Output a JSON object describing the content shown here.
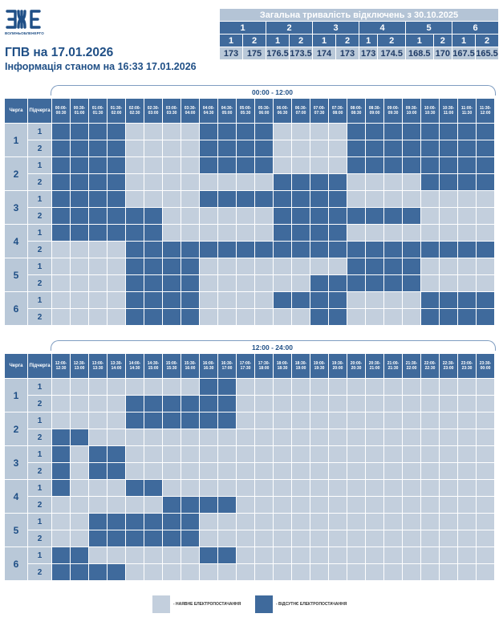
{
  "header": {
    "logo_text": "ВОЛИНЬОБЛЕНЕРГО",
    "title": "ГПВ на 17.01.2026",
    "subtitle": "Інформація станом на 16:33 17.01.2026"
  },
  "summary": {
    "title": "Загальна тривалість відключень з 30.10.2025",
    "queues": [
      "1",
      "2",
      "3",
      "4",
      "5",
      "6"
    ],
    "subqueues": [
      "1",
      "2",
      "1",
      "2",
      "1",
      "2",
      "1",
      "2",
      "1",
      "2",
      "1",
      "2"
    ],
    "values": [
      "173",
      "175",
      "176.5",
      "173.5",
      "174",
      "173",
      "173",
      "174.5",
      "168.5",
      "170",
      "167.5",
      "165.5"
    ]
  },
  "schedule": {
    "col_queue": "Черга",
    "col_subqueue": "Підчерга",
    "queue_labels": [
      "1",
      "2",
      "3",
      "4",
      "5",
      "6"
    ],
    "sub_labels": [
      "1",
      "2",
      "1",
      "2",
      "1",
      "2",
      "1",
      "2",
      "1",
      "2",
      "1",
      "2"
    ],
    "block1": {
      "range": "00:00 - 12:00",
      "slots": [
        "00:00-00:30",
        "00:30-01:00",
        "01:00-01:30",
        "01:30-02:00",
        "02:00-02:30",
        "02:30-03:00",
        "03:00-03:30",
        "03:30-04:00",
        "04:00-04:30",
        "04:30-05:00",
        "05:00-05:30",
        "05:30-06:00",
        "06:00-06:30",
        "06:30-07:00",
        "07:00-07:30",
        "07:30-08:00",
        "08:00-08:30",
        "08:30-09:00",
        "09:00-09:30",
        "09:30-10:00",
        "10:00-10:30",
        "10:30-11:00",
        "11:00-11:30",
        "11:30-12:00"
      ],
      "rows": [
        [
          1,
          1,
          1,
          1,
          0,
          0,
          0,
          0,
          1,
          1,
          1,
          1,
          0,
          0,
          0,
          0,
          1,
          1,
          1,
          1,
          1,
          1,
          1,
          1
        ],
        [
          1,
          1,
          1,
          1,
          0,
          0,
          0,
          0,
          1,
          1,
          1,
          1,
          0,
          0,
          0,
          0,
          1,
          1,
          1,
          1,
          1,
          1,
          1,
          1
        ],
        [
          1,
          1,
          1,
          1,
          0,
          0,
          0,
          0,
          1,
          1,
          1,
          1,
          0,
          0,
          0,
          0,
          1,
          1,
          1,
          1,
          1,
          1,
          1,
          1
        ],
        [
          1,
          1,
          1,
          1,
          0,
          0,
          0,
          0,
          0,
          0,
          0,
          0,
          1,
          1,
          1,
          1,
          0,
          0,
          0,
          0,
          1,
          1,
          1,
          1
        ],
        [
          1,
          1,
          1,
          1,
          0,
          0,
          0,
          0,
          1,
          1,
          1,
          1,
          1,
          1,
          1,
          1,
          0,
          0,
          0,
          0,
          0,
          0,
          0,
          0
        ],
        [
          1,
          1,
          1,
          1,
          1,
          1,
          0,
          0,
          0,
          0,
          0,
          0,
          1,
          1,
          1,
          1,
          1,
          1,
          1,
          1,
          0,
          0,
          0,
          0
        ],
        [
          1,
          1,
          1,
          1,
          1,
          1,
          0,
          0,
          0,
          0,
          0,
          0,
          1,
          1,
          1,
          1,
          0,
          0,
          0,
          0,
          0,
          0,
          0,
          0
        ],
        [
          0,
          0,
          0,
          0,
          1,
          1,
          1,
          1,
          1,
          1,
          1,
          1,
          1,
          1,
          1,
          1,
          1,
          1,
          1,
          1,
          1,
          1,
          1,
          1
        ],
        [
          0,
          0,
          0,
          0,
          1,
          1,
          1,
          1,
          0,
          0,
          0,
          0,
          0,
          0,
          0,
          0,
          1,
          1,
          1,
          1,
          0,
          0,
          0,
          0
        ],
        [
          0,
          0,
          0,
          0,
          1,
          1,
          1,
          1,
          0,
          0,
          0,
          0,
          0,
          0,
          1,
          1,
          1,
          1,
          1,
          1,
          0,
          0,
          0,
          0
        ],
        [
          0,
          0,
          0,
          0,
          1,
          1,
          1,
          1,
          0,
          0,
          0,
          0,
          1,
          1,
          1,
          1,
          0,
          0,
          0,
          0,
          1,
          1,
          1,
          1
        ],
        [
          0,
          0,
          0,
          0,
          1,
          1,
          1,
          1,
          0,
          0,
          0,
          0,
          0,
          0,
          1,
          1,
          0,
          0,
          0,
          0,
          1,
          1,
          1,
          1
        ]
      ]
    },
    "block2": {
      "range": "12:00 - 24:00",
      "slots": [
        "12:00-12:30",
        "12:30-13:00",
        "13:00-13:30",
        "13:30-14:00",
        "14:00-14:30",
        "14:30-15:00",
        "15:00-15:30",
        "15:30-16:00",
        "16:00-16:30",
        "16:30-17:00",
        "17:00-17:30",
        "17:30-18:00",
        "18:00-18:30",
        "18:30-19:00",
        "19:00-19:30",
        "19:30-20:00",
        "20:00-20:30",
        "20:30-21:00",
        "21:00-21:30",
        "21:30-22:00",
        "22:00-22:30",
        "22:30-23:00",
        "23:00-23:30",
        "23:30-00:00"
      ],
      "rows": [
        [
          0,
          0,
          0,
          0,
          0,
          0,
          0,
          0,
          1,
          1,
          0,
          0,
          0,
          0,
          0,
          0,
          0,
          0,
          0,
          0,
          0,
          0,
          0,
          0
        ],
        [
          0,
          0,
          0,
          0,
          1,
          1,
          1,
          1,
          1,
          1,
          0,
          0,
          0,
          0,
          0,
          0,
          0,
          0,
          0,
          0,
          0,
          0,
          0,
          0
        ],
        [
          0,
          0,
          0,
          0,
          1,
          1,
          1,
          1,
          1,
          1,
          0,
          0,
          0,
          0,
          0,
          0,
          0,
          0,
          0,
          0,
          0,
          0,
          0,
          0
        ],
        [
          1,
          1,
          0,
          0,
          0,
          0,
          0,
          0,
          0,
          0,
          0,
          0,
          0,
          0,
          0,
          0,
          0,
          0,
          0,
          0,
          0,
          0,
          0,
          0
        ],
        [
          1,
          0,
          1,
          1,
          0,
          0,
          0,
          0,
          0,
          0,
          0,
          0,
          0,
          0,
          0,
          0,
          0,
          0,
          0,
          0,
          0,
          0,
          0,
          0
        ],
        [
          1,
          0,
          1,
          1,
          0,
          0,
          0,
          0,
          0,
          0,
          0,
          0,
          0,
          0,
          0,
          0,
          0,
          0,
          0,
          0,
          0,
          0,
          0,
          0
        ],
        [
          1,
          0,
          0,
          0,
          1,
          1,
          0,
          0,
          0,
          0,
          0,
          0,
          0,
          0,
          0,
          0,
          0,
          0,
          0,
          0,
          0,
          0,
          0,
          0
        ],
        [
          0,
          0,
          0,
          0,
          0,
          0,
          1,
          1,
          1,
          1,
          0,
          0,
          0,
          0,
          0,
          0,
          0,
          0,
          0,
          0,
          0,
          0,
          0,
          0
        ],
        [
          0,
          0,
          1,
          1,
          1,
          1,
          1,
          1,
          0,
          0,
          0,
          0,
          0,
          0,
          0,
          0,
          0,
          0,
          0,
          0,
          0,
          0,
          0,
          0
        ],
        [
          0,
          0,
          1,
          1,
          1,
          1,
          1,
          1,
          0,
          0,
          0,
          0,
          0,
          0,
          0,
          0,
          0,
          0,
          0,
          0,
          0,
          0,
          0,
          0
        ],
        [
          1,
          1,
          0,
          0,
          0,
          0,
          0,
          0,
          1,
          1,
          0,
          0,
          0,
          0,
          0,
          0,
          0,
          0,
          0,
          0,
          0,
          0,
          0,
          0
        ],
        [
          1,
          1,
          1,
          1,
          0,
          0,
          0,
          0,
          0,
          0,
          0,
          0,
          0,
          0,
          0,
          0,
          0,
          0,
          0,
          0,
          0,
          0,
          0,
          0
        ]
      ]
    }
  },
  "legend": {
    "on_label": "- НАЯВНЕ ЕЛЕКТРОПОСТАЧАННЯ",
    "off_label": "- ВІДСУТНЄ ЕЛЕКТРОПОСТАЧАННЯ",
    "on_color": "#c3cfdd",
    "off_color": "#3f6a9c"
  }
}
